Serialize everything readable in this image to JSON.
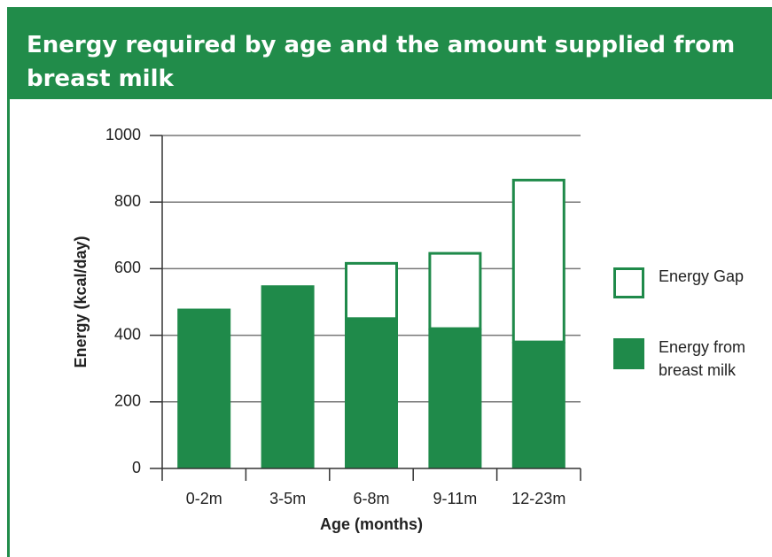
{
  "chart_data": {
    "type": "stacked_bar",
    "title": "Energy required by age and the amount supplied from breast milk",
    "categories": [
      "0-2m",
      "3-5m",
      "6-8m",
      "9-11m",
      "12-23m"
    ],
    "series": [
      {
        "name": "Energy from breast milk",
        "color": "#1f8a4a",
        "values": [
          480,
          550,
          450,
          420,
          380
        ]
      },
      {
        "name": "Energy Gap",
        "color": "#1f8a4a",
        "outline": true,
        "values": [
          null,
          null,
          170,
          230,
          490
        ]
      }
    ],
    "xlabel": "Age (months)",
    "ylabel": "Energy (kcal/day)",
    "ylim": [
      0,
      1000
    ],
    "yticks": [
      0,
      200,
      400,
      600,
      800,
      1000
    ],
    "grid": true,
    "legend": "right"
  }
}
